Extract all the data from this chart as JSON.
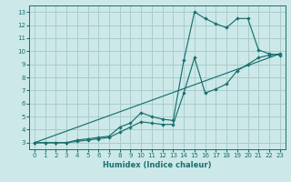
{
  "xlabel": "Humidex (Indice chaleur)",
  "bg_color": "#cce8e8",
  "grid_color": "#aacccc",
  "line_color": "#1a7070",
  "xlim": [
    -0.5,
    23.5
  ],
  "ylim": [
    2.5,
    13.5
  ],
  "xticks": [
    0,
    1,
    2,
    3,
    4,
    5,
    6,
    7,
    8,
    9,
    10,
    11,
    12,
    13,
    14,
    15,
    16,
    17,
    18,
    19,
    20,
    21,
    22,
    23
  ],
  "yticks": [
    3,
    4,
    5,
    6,
    7,
    8,
    9,
    10,
    11,
    12,
    13
  ],
  "line1_x": [
    0,
    1,
    2,
    3,
    4,
    5,
    6,
    7,
    8,
    9,
    10,
    11,
    12,
    13,
    14,
    15,
    16,
    17,
    18,
    19,
    20,
    21,
    22,
    23
  ],
  "line1_y": [
    3.0,
    3.0,
    3.0,
    3.0,
    3.2,
    3.3,
    3.4,
    3.5,
    4.2,
    4.5,
    5.3,
    5.0,
    4.8,
    4.7,
    9.3,
    13.0,
    12.5,
    12.1,
    11.8,
    12.5,
    12.5,
    10.1,
    9.8,
    9.7
  ],
  "line2_x": [
    0,
    1,
    2,
    3,
    4,
    5,
    6,
    7,
    8,
    9,
    10,
    11,
    12,
    13,
    14,
    15,
    16,
    17,
    18,
    19,
    20,
    21,
    22,
    23
  ],
  "line2_y": [
    3.0,
    3.0,
    3.0,
    3.0,
    3.1,
    3.2,
    3.3,
    3.4,
    3.8,
    4.2,
    4.6,
    4.5,
    4.4,
    4.4,
    6.8,
    9.5,
    6.8,
    7.1,
    7.5,
    8.5,
    9.0,
    9.5,
    9.7,
    9.8
  ],
  "line3_x": [
    0,
    23
  ],
  "line3_y": [
    3.0,
    9.8
  ]
}
